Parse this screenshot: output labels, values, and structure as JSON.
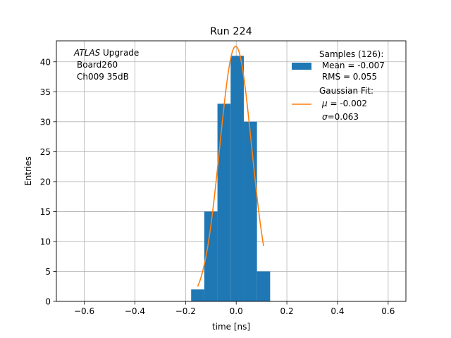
{
  "chart_data": {
    "type": "bar",
    "title": "Run 224",
    "xlabel": "time [ns]",
    "ylabel": "Entries",
    "xlim": [
      -0.71,
      0.67
    ],
    "ylim": [
      0,
      43.5
    ],
    "grid": true,
    "x_ticks": [
      -0.6,
      -0.4,
      -0.2,
      0.0,
      0.2,
      0.4,
      0.6
    ],
    "x_tick_labels": [
      "−0.6",
      "−0.4",
      "−0.2",
      "0.0",
      "0.2",
      "0.4",
      "0.6"
    ],
    "y_ticks": [
      0,
      5,
      10,
      15,
      20,
      25,
      30,
      35,
      40
    ],
    "y_tick_labels": [
      "0",
      "5",
      "10",
      "15",
      "20",
      "25",
      "30",
      "35",
      "40"
    ],
    "annotation": {
      "experiment": "ATLAS",
      "experiment_suffix": " Upgrade",
      "line2": "Board260",
      "line3": "Ch009 35dB"
    },
    "histogram": {
      "name": "Samples (126):",
      "color": "#1f77b4",
      "bins": [
        {
          "x0": -0.178,
          "x1": -0.126,
          "count": 2
        },
        {
          "x0": -0.126,
          "x1": -0.074,
          "count": 15
        },
        {
          "x0": -0.074,
          "x1": -0.022,
          "count": 33
        },
        {
          "x0": -0.022,
          "x1": 0.03,
          "count": 41
        },
        {
          "x0": 0.03,
          "x1": 0.082,
          "count": 30
        },
        {
          "x0": 0.082,
          "x1": 0.134,
          "count": 5
        }
      ]
    },
    "fit": {
      "name": "Gaussian Fit:",
      "color": "#ff7f0e",
      "mu": -0.002,
      "sigma": 0.063,
      "amplitude": 42.6,
      "x_range": [
        -0.152,
        0.108
      ]
    },
    "legend": {
      "position": "top-right",
      "hist_lines": [
        "Samples (126):",
        " Mean = -0.007",
        " RMS = 0.055"
      ],
      "fit_title": "Gaussian Fit:",
      "fit_mu_symbol": "μ",
      "fit_mu_value": " = -0.002",
      "fit_sigma_symbol": "σ",
      "fit_sigma_value": "=0.063"
    }
  }
}
